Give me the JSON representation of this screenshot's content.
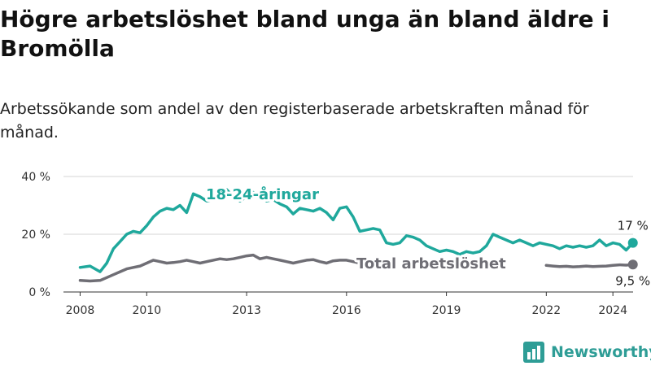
{
  "title": "Högre arbetslöshet bland unga än bland äldre i Bromölla",
  "subtitle": "Arbetssökande som andel av den registerbaserade arbetskraften månad för månad.",
  "brand": {
    "name": "Newsworthy",
    "logo_icon": "bar-chart-logo-icon",
    "color": "#2e9d96"
  },
  "chart_data": {
    "type": "line",
    "ylim": [
      0,
      40
    ],
    "yticks": [
      0,
      20,
      40
    ],
    "ytick_labels": [
      "0 %",
      "20 %",
      "40 %"
    ],
    "xlim": [
      2007.5,
      2024.9
    ],
    "xticks": [
      2008,
      2010,
      2013,
      2016,
      2019,
      2022,
      2024
    ],
    "xtick_labels": [
      "2008",
      "2010",
      "2013",
      "2016",
      "2019",
      "2022",
      "2024"
    ],
    "grid": "horizontal",
    "series": [
      {
        "name": "18-24-åringar",
        "color": "#1fa89c",
        "end_label": "17 %",
        "points": [
          [
            2008.0,
            8.5
          ],
          [
            2008.3,
            9.0
          ],
          [
            2008.6,
            7.0
          ],
          [
            2008.8,
            10.0
          ],
          [
            2009.0,
            15.0
          ],
          [
            2009.2,
            17.5
          ],
          [
            2009.4,
            20.0
          ],
          [
            2009.6,
            21.0
          ],
          [
            2009.8,
            20.5
          ],
          [
            2010.0,
            23.0
          ],
          [
            2010.2,
            26.0
          ],
          [
            2010.4,
            28.0
          ],
          [
            2010.6,
            29.0
          ],
          [
            2010.8,
            28.5
          ],
          [
            2011.0,
            30.0
          ],
          [
            2011.2,
            27.5
          ],
          [
            2011.4,
            34.0
          ],
          [
            2011.6,
            33.0
          ],
          [
            2011.8,
            31.5
          ],
          [
            2012.0,
            32.0
          ],
          [
            2012.2,
            34.0
          ],
          [
            2012.4,
            35.5
          ],
          [
            2012.6,
            33.0
          ],
          [
            2012.8,
            31.5
          ],
          [
            2013.0,
            33.0
          ],
          [
            2013.2,
            34.5
          ],
          [
            2013.4,
            33.0
          ],
          [
            2013.6,
            31.5
          ],
          [
            2013.8,
            32.0
          ],
          [
            2014.0,
            30.5
          ],
          [
            2014.2,
            29.5
          ],
          [
            2014.4,
            27.0
          ],
          [
            2014.6,
            29.0
          ],
          [
            2014.8,
            28.5
          ],
          [
            2015.0,
            28.0
          ],
          [
            2015.2,
            29.0
          ],
          [
            2015.4,
            27.5
          ],
          [
            2015.6,
            25.0
          ],
          [
            2015.8,
            29.0
          ],
          [
            2016.0,
            29.5
          ],
          [
            2016.2,
            26.0
          ],
          [
            2016.4,
            21.0
          ],
          [
            2016.6,
            21.5
          ],
          [
            2016.8,
            22.0
          ],
          [
            2017.0,
            21.5
          ],
          [
            2017.2,
            17.0
          ],
          [
            2017.4,
            16.5
          ],
          [
            2017.6,
            17.0
          ],
          [
            2017.8,
            19.5
          ],
          [
            2018.0,
            19.0
          ],
          [
            2018.2,
            18.0
          ],
          [
            2018.4,
            16.0
          ],
          [
            2018.6,
            15.0
          ],
          [
            2018.8,
            14.0
          ],
          [
            2019.0,
            14.5
          ],
          [
            2019.2,
            14.0
          ],
          [
            2019.4,
            13.0
          ],
          [
            2019.6,
            14.0
          ],
          [
            2019.8,
            13.5
          ],
          [
            2020.0,
            14.0
          ],
          [
            2020.2,
            16.0
          ],
          [
            2020.4,
            20.0
          ],
          [
            2020.6,
            19.0
          ],
          [
            2020.8,
            18.0
          ],
          [
            2021.0,
            17.0
          ],
          [
            2021.2,
            18.0
          ],
          [
            2021.4,
            17.0
          ],
          [
            2021.6,
            16.0
          ],
          [
            2021.8,
            17.0
          ],
          [
            2022.0,
            16.5
          ],
          [
            2022.2,
            16.0
          ],
          [
            2022.4,
            15.0
          ],
          [
            2022.6,
            16.0
          ],
          [
            2022.8,
            15.5
          ],
          [
            2023.0,
            16.0
          ],
          [
            2023.2,
            15.5
          ],
          [
            2023.4,
            16.0
          ],
          [
            2023.6,
            18.0
          ],
          [
            2023.8,
            16.0
          ],
          [
            2024.0,
            17.0
          ],
          [
            2024.2,
            16.5
          ],
          [
            2024.4,
            14.5
          ],
          [
            2024.6,
            17.0
          ]
        ]
      },
      {
        "name": "Total arbetslöshet",
        "color": "#6f6e75",
        "end_label": "9,5 %",
        "points": [
          [
            2008.0,
            4.0
          ],
          [
            2008.3,
            3.8
          ],
          [
            2008.6,
            4.0
          ],
          [
            2008.8,
            5.0
          ],
          [
            2009.0,
            6.0
          ],
          [
            2009.2,
            7.0
          ],
          [
            2009.4,
            8.0
          ],
          [
            2009.6,
            8.5
          ],
          [
            2009.8,
            9.0
          ],
          [
            2010.0,
            10.0
          ],
          [
            2010.2,
            11.0
          ],
          [
            2010.4,
            10.5
          ],
          [
            2010.6,
            10.0
          ],
          [
            2010.8,
            10.2
          ],
          [
            2011.0,
            10.5
          ],
          [
            2011.2,
            11.0
          ],
          [
            2011.4,
            10.5
          ],
          [
            2011.6,
            10.0
          ],
          [
            2011.8,
            10.5
          ],
          [
            2012.0,
            11.0
          ],
          [
            2012.2,
            11.5
          ],
          [
            2012.4,
            11.2
          ],
          [
            2012.6,
            11.5
          ],
          [
            2012.8,
            12.0
          ],
          [
            2013.0,
            12.5
          ],
          [
            2013.2,
            12.8
          ],
          [
            2013.4,
            11.5
          ],
          [
            2013.6,
            12.0
          ],
          [
            2013.8,
            11.5
          ],
          [
            2014.0,
            11.0
          ],
          [
            2014.2,
            10.5
          ],
          [
            2014.4,
            10.0
          ],
          [
            2014.6,
            10.5
          ],
          [
            2014.8,
            11.0
          ],
          [
            2015.0,
            11.2
          ],
          [
            2015.2,
            10.5
          ],
          [
            2015.4,
            10.0
          ],
          [
            2015.6,
            10.8
          ],
          [
            2015.8,
            11.0
          ],
          [
            2016.0,
            11.0
          ],
          [
            2016.2,
            10.5
          ],
          [
            2016.4,
            10.0
          ],
          [
            2016.6,
            9.8
          ],
          [
            2022.0,
            9.2
          ],
          [
            2022.2,
            9.0
          ],
          [
            2022.4,
            8.8
          ],
          [
            2022.6,
            8.9
          ],
          [
            2022.8,
            8.7
          ],
          [
            2023.0,
            8.8
          ],
          [
            2023.2,
            9.0
          ],
          [
            2023.4,
            8.8
          ],
          [
            2023.6,
            8.9
          ],
          [
            2023.8,
            9.0
          ],
          [
            2024.0,
            9.2
          ],
          [
            2024.2,
            9.4
          ],
          [
            2024.4,
            9.3
          ],
          [
            2024.6,
            9.5
          ]
        ]
      }
    ]
  }
}
